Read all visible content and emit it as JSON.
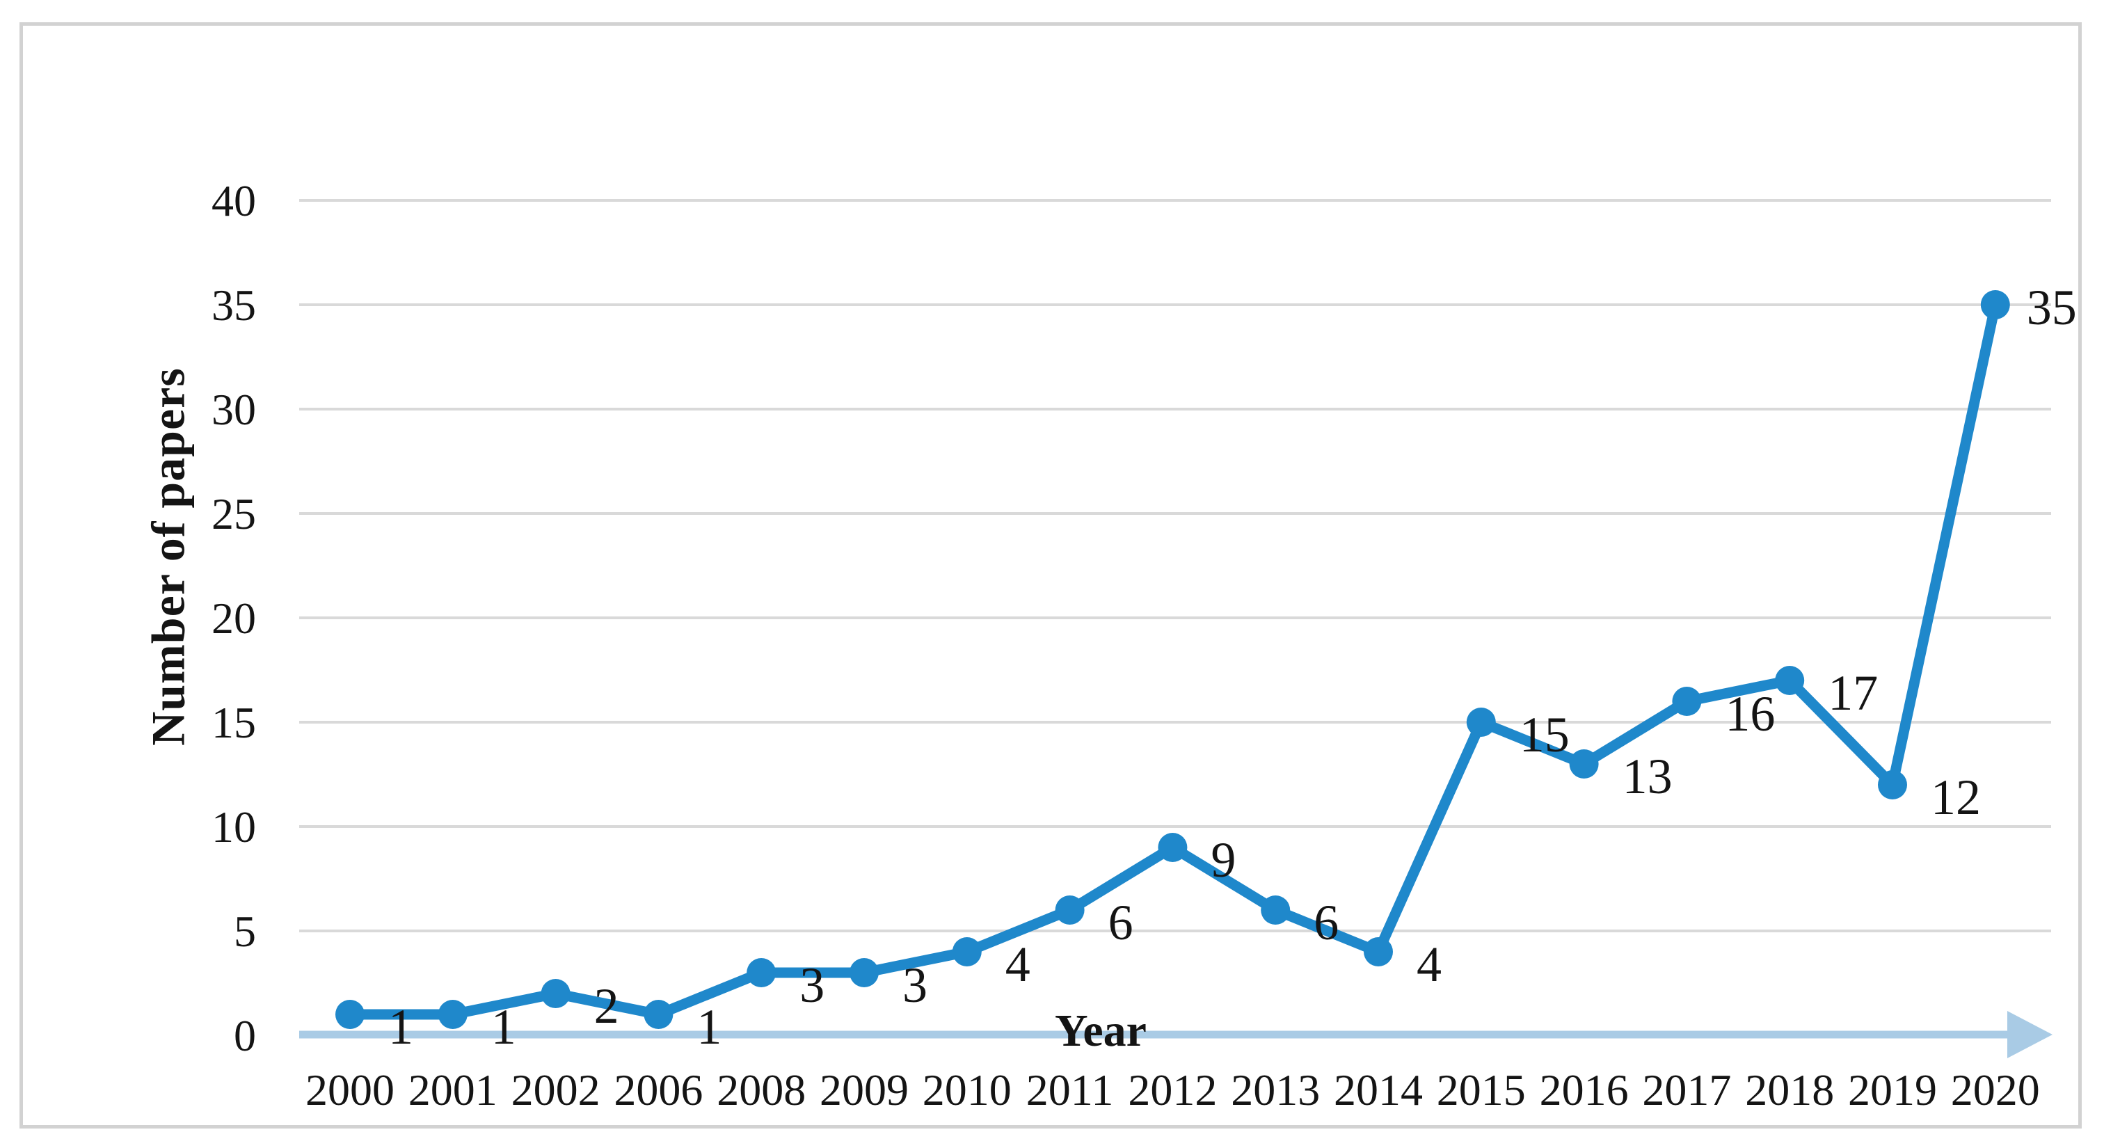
{
  "figure": {
    "x_axis_title": "Year",
    "y_axis_title": "Number of papers"
  },
  "chart_data": {
    "type": "line",
    "title": "",
    "categories": [
      "2000",
      "2001",
      "2002",
      "2006",
      "2008",
      "2009",
      "2010",
      "2011",
      "2012",
      "2013",
      "2014",
      "2015",
      "2016",
      "2017",
      "2018",
      "2019",
      "2020"
    ],
    "values": [
      1,
      1,
      2,
      1,
      3,
      3,
      4,
      6,
      9,
      6,
      4,
      15,
      13,
      16,
      17,
      12,
      35
    ],
    "data_labels": [
      "1",
      "1",
      "2",
      "1",
      "3",
      "3",
      "4",
      "6",
      "9",
      "6",
      "4",
      "15",
      "13",
      "16",
      "17",
      "12",
      "35"
    ],
    "xlabel": "Year",
    "ylabel": "Number of papers",
    "ylim": [
      0,
      40
    ],
    "yticks": [
      0,
      5,
      10,
      15,
      20,
      25,
      30,
      35,
      40
    ],
    "grid": true,
    "legend": "none",
    "colors": {
      "line": "#1f88cb",
      "marker": "#1f88cb",
      "axis_arrow": "#a9cbe5",
      "gridline": "#d9d9d9",
      "text": "#141414",
      "frame": "#d2d2d2"
    }
  }
}
